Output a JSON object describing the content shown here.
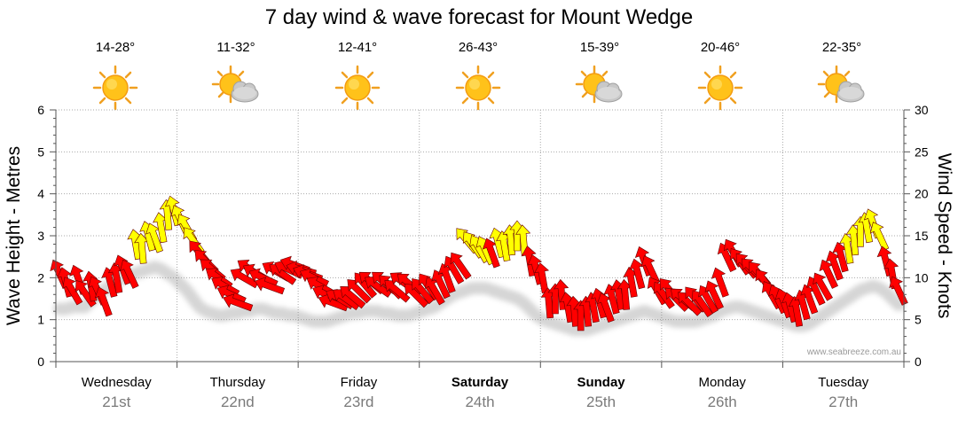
{
  "title": "7 day wind & wave forecast for Mount Wedge",
  "credit": "www.seabreeze.com.au",
  "axes": {
    "left_label": "Wave Height - Metres",
    "right_label": "Wind Speed - Knots",
    "left_ticks": [
      "0",
      "1",
      "2",
      "3",
      "4",
      "5",
      "6"
    ],
    "right_ticks": [
      "0",
      "5",
      "10",
      "15",
      "20",
      "25",
      "30"
    ]
  },
  "days": [
    {
      "name": "Wednesday",
      "date": "21st",
      "temp": "14-28°",
      "icon": "sun-icon",
      "bold": false
    },
    {
      "name": "Thursday",
      "date": "22nd",
      "temp": "11-32°",
      "icon": "sun-cloud-icon",
      "bold": false
    },
    {
      "name": "Friday",
      "date": "23rd",
      "temp": "12-41°",
      "icon": "sun-icon",
      "bold": false
    },
    {
      "name": "Saturday",
      "date": "24th",
      "temp": "26-43°",
      "icon": "sun-icon",
      "bold": true
    },
    {
      "name": "Sunday",
      "date": "25th",
      "temp": "15-39°",
      "icon": "sun-cloud-icon",
      "bold": true
    },
    {
      "name": "Monday",
      "date": "26th",
      "temp": "20-46°",
      "icon": "sun-icon",
      "bold": false
    },
    {
      "name": "Tuesday",
      "date": "27th",
      "temp": "22-35°",
      "icon": "sun-cloud-icon",
      "bold": false
    }
  ],
  "colors": {
    "strong": "#ff0000",
    "light": "#ffff00",
    "grid": "#999999",
    "date": "#7a7a7a"
  },
  "chart_data": {
    "type": "line",
    "xlabel": "",
    "ylabel": "Wave Height - Metres",
    "y2label": "Wind Speed - Knots",
    "ylim": [
      0,
      6
    ],
    "y2lim": [
      0,
      30
    ],
    "categories": [
      "Wednesday 21st",
      "Thursday 22nd",
      "Friday 23rd",
      "Saturday 24th",
      "Sunday 25th",
      "Monday 26th",
      "Tuesday 27th"
    ],
    "series": [
      {
        "wind_speed_knots": [
          10.5,
          9.5,
          8.5,
          9.8,
          8.2,
          9.0,
          8.5,
          7.2,
          9.5,
          10.0,
          11.0,
          10.5,
          14.0,
          13.5,
          15.0,
          14.8,
          16.0,
          17.5,
          18.0,
          17.0,
          16.0,
          14.5,
          13.0,
          12.0,
          11.0,
          10.0,
          9.0,
          8.0,
          7.0,
          10.0,
          11.0,
          10.5,
          10.0,
          9.0,
          10.8,
          10.5,
          11.0,
          11.5,
          11.0,
          10.5,
          10.0,
          9.0,
          8.0,
          7.0,
          7.5,
          7.5,
          7.8,
          8.5,
          9.2,
          9.5,
          9.0,
          9.5,
          9.0,
          8.5,
          9.5,
          9.3,
          8.0,
          8.5,
          9.0,
          8.5,
          9.3,
          10.0,
          11.0,
          11.5,
          14.5,
          14.0,
          13.5,
          13.3,
          13.0,
          14.2,
          13.8,
          14.5,
          15.0,
          14.5,
          12.0,
          11.0,
          10.0,
          7.0,
          7.5,
          8.0,
          6.5,
          6.0,
          5.5,
          6.0,
          6.5,
          7.0,
          6.5,
          7.5,
          8.0,
          8.0,
          9.5,
          10.5,
          12.0,
          11.0,
          8.5,
          8.0,
          8.5,
          7.5,
          7.5,
          7.0,
          7.5,
          7.0,
          7.5,
          8.0,
          9.5,
          12.5,
          13.0,
          12.0,
          11.5,
          11.0,
          10.5,
          9.5,
          8.0,
          7.5,
          7.0,
          6.5,
          6.0,
          6.8,
          7.5,
          8.5,
          9.0,
          10.5,
          11.5,
          12.5,
          13.5,
          14.5,
          15.5,
          16.0,
          16.5,
          15.0,
          12.0,
          10.5,
          8.5
        ],
        "wave_height_m": [
          1.55,
          1.55,
          1.6,
          1.6,
          1.6,
          1.75,
          1.9,
          2.0,
          2.1,
          2.2,
          2.3,
          2.35,
          2.4,
          2.45,
          2.5,
          2.55,
          2.5,
          2.4,
          2.3,
          2.15,
          2.0,
          1.8,
          1.6,
          1.5,
          1.45,
          1.4,
          1.4,
          1.45,
          1.45,
          1.5,
          1.5,
          1.55,
          1.55,
          1.5,
          1.45,
          1.45,
          1.4,
          1.4,
          1.35,
          1.3,
          1.25,
          1.25,
          1.25,
          1.3,
          1.35,
          1.4,
          1.45,
          1.45,
          1.5,
          1.5,
          1.5,
          1.45,
          1.45,
          1.4,
          1.4,
          1.4,
          1.45,
          1.5,
          1.55,
          1.6,
          1.7,
          1.8,
          1.9,
          1.95,
          2.0,
          2.05,
          2.05,
          2.05,
          2.0,
          1.95,
          1.9,
          1.85,
          1.8,
          1.7,
          1.55,
          1.4,
          1.3,
          1.25,
          1.2,
          1.15,
          1.1,
          1.05,
          1.05,
          1.05,
          1.1,
          1.15,
          1.2,
          1.25,
          1.3,
          1.35,
          1.4,
          1.45,
          1.5,
          1.45,
          1.4,
          1.35,
          1.3,
          1.25,
          1.25,
          1.25,
          1.25,
          1.3,
          1.35,
          1.4,
          1.5,
          1.55,
          1.6,
          1.6,
          1.55,
          1.5,
          1.45,
          1.4,
          1.35,
          1.3,
          1.25,
          1.2,
          1.15,
          1.15,
          1.2,
          1.3,
          1.4,
          1.5,
          1.6,
          1.7,
          1.8,
          1.9,
          2.0,
          2.05,
          2.1,
          2.05,
          1.95,
          1.8,
          1.65
        ]
      }
    ],
    "legend": "none",
    "grid": true
  }
}
